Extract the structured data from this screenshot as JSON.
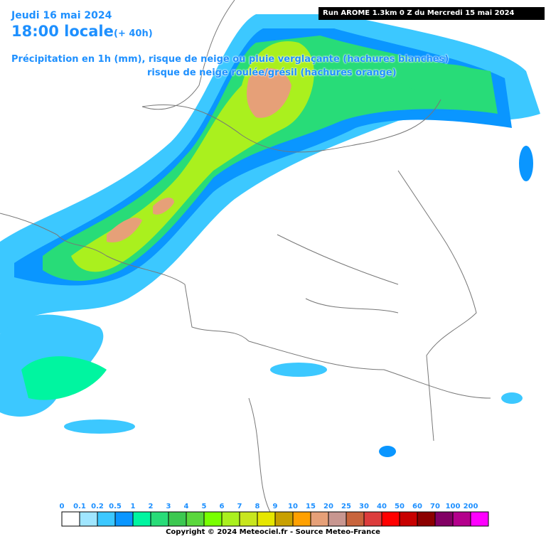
{
  "header": {
    "date": "Jeudi 16 mai 2024",
    "time": "18:00 locale",
    "lead": "(+ 40h)",
    "line1": "Précipitation en 1h (mm), risque de neige ou pluie verglaçante (hachures blanches)",
    "line2": "risque de neige roulée/grésil (hachures orange)",
    "run": "Run AROME 1.3km 0 Z du Mercredi 15 mai 2024"
  },
  "legend": {
    "items": [
      {
        "label": "0",
        "color": "#ffffff"
      },
      {
        "label": "0.1",
        "color": "#a0e6ff"
      },
      {
        "label": "0.2",
        "color": "#3cc8ff"
      },
      {
        "label": "0.5",
        "color": "#0a96ff"
      },
      {
        "label": "1",
        "color": "#00f5a0"
      },
      {
        "label": "2",
        "color": "#28dc78"
      },
      {
        "label": "3",
        "color": "#3cc850"
      },
      {
        "label": "4",
        "color": "#5ad73c"
      },
      {
        "label": "5",
        "color": "#78ff00"
      },
      {
        "label": "6",
        "color": "#aaf01e"
      },
      {
        "label": "7",
        "color": "#c8e61e"
      },
      {
        "label": "8",
        "color": "#e6e600"
      },
      {
        "label": "9",
        "color": "#c8a000"
      },
      {
        "label": "10",
        "color": "#ffa000"
      },
      {
        "label": "15",
        "color": "#e6a078"
      },
      {
        "label": "20",
        "color": "#c89690"
      },
      {
        "label": "25",
        "color": "#c8643c"
      },
      {
        "label": "30",
        "color": "#dc3c3c"
      },
      {
        "label": "40",
        "color": "#ff0000"
      },
      {
        "label": "50",
        "color": "#c80000"
      },
      {
        "label": "60",
        "color": "#8c0000"
      },
      {
        "label": "70",
        "color": "#820064"
      },
      {
        "label": "100",
        "color": "#b4008c"
      },
      {
        "label": "200",
        "color": "#ff00ff"
      }
    ]
  },
  "copyright": "Copyright © 2024 Meteociel.fr - Source Meteo-France"
}
